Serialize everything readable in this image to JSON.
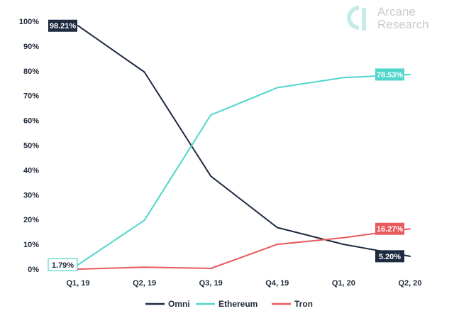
{
  "brand": {
    "line1": "Arcane",
    "line2": "Research",
    "logo_color": "#c6ece7",
    "text_color": "#c7c9cc"
  },
  "chart_data": {
    "type": "line",
    "title": "",
    "xlabel": "",
    "ylabel": "",
    "categories": [
      "Q1, 19",
      "Q2, 19",
      "Q3, 19",
      "Q4, 19",
      "Q1, 20",
      "Q2, 20"
    ],
    "ylim": [
      0,
      100
    ],
    "yticks": [
      "0%",
      "10%",
      "20%",
      "30%",
      "40%",
      "50%",
      "60%",
      "70%",
      "80%",
      "90%",
      "100%"
    ],
    "grid": false,
    "legend_position": "bottom-center",
    "series": [
      {
        "name": "Omni",
        "color": "#1e2a40",
        "values": [
          98.21,
          79.5,
          37.5,
          16.8,
          10.0,
          5.2
        ]
      },
      {
        "name": "Ethereum",
        "color": "#4fd6cc",
        "values": [
          1.79,
          19.7,
          62.2,
          73.2,
          77.3,
          78.53
        ]
      },
      {
        "name": "Tron",
        "color": "#e85a5e",
        "values": [
          0.0,
          0.8,
          0.3,
          10.0,
          12.7,
          16.27
        ]
      }
    ],
    "annotations": [
      {
        "series": 0,
        "index": 0,
        "text": "98.21%",
        "style": "filled"
      },
      {
        "series": 0,
        "index": 5,
        "text": "5.20%",
        "style": "filled"
      },
      {
        "series": 1,
        "index": 0,
        "text": "1.79%",
        "style": "outline"
      },
      {
        "series": 1,
        "index": 5,
        "text": "78.53%",
        "style": "filled"
      },
      {
        "series": 2,
        "index": 5,
        "text": "16.27%",
        "style": "filled"
      }
    ]
  }
}
